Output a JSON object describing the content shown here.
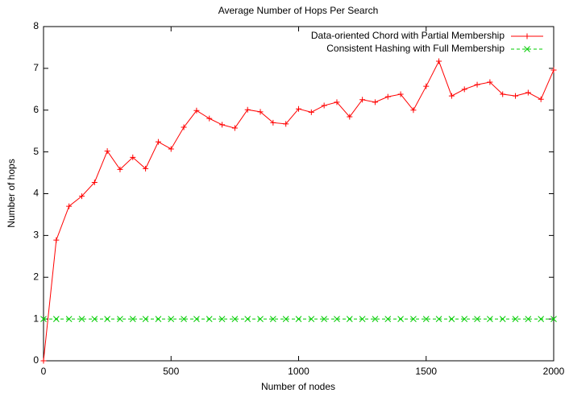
{
  "chart_data": {
    "type": "line",
    "title": "Average Number of Hops Per Search",
    "x_label": "Number of nodes",
    "y_label": "Number of hops",
    "x": [
      0,
      50,
      100,
      150,
      200,
      250,
      300,
      350,
      400,
      450,
      500,
      550,
      600,
      650,
      700,
      750,
      800,
      850,
      900,
      950,
      1000,
      1050,
      1100,
      1150,
      1200,
      1250,
      1300,
      1350,
      1400,
      1450,
      1500,
      1550,
      1600,
      1650,
      1700,
      1750,
      1800,
      1850,
      1900,
      1950,
      2000
    ],
    "series": [
      {
        "name": "Data-oriented Chord with Partial Membership",
        "color": "#ff0000",
        "marker": "plus",
        "values": [
          0,
          2.89,
          3.7,
          3.94,
          4.27,
          5.02,
          4.58,
          4.87,
          4.6,
          5.24,
          5.07,
          5.59,
          5.99,
          5.8,
          5.65,
          5.57,
          6.01,
          5.96,
          5.7,
          5.67,
          6.03,
          5.95,
          6.11,
          6.19,
          5.84,
          6.25,
          6.19,
          6.32,
          6.38,
          6.0,
          6.57,
          7.17,
          6.34,
          6.5,
          6.61,
          6.67,
          6.38,
          6.34,
          6.42,
          6.26,
          6.96
        ]
      },
      {
        "name": "Consistent Hashing with Full Membership",
        "color": "#00cc00",
        "marker": "cross",
        "dashed": true,
        "values": [
          1,
          1,
          1,
          1,
          1,
          1,
          1,
          1,
          1,
          1,
          1,
          1,
          1,
          1,
          1,
          1,
          1,
          1,
          1,
          1,
          1,
          1,
          1,
          1,
          1,
          1,
          1,
          1,
          1,
          1,
          1,
          1,
          1,
          1,
          1,
          1,
          1,
          1,
          1,
          1,
          1
        ]
      }
    ],
    "xlim": [
      0,
      2000
    ],
    "xticks": [
      0,
      500,
      1000,
      1500,
      2000
    ],
    "ylim": [
      0,
      8
    ],
    "yticks": [
      0,
      1,
      2,
      3,
      4,
      5,
      6,
      7,
      8
    ],
    "grid": false,
    "legend": "top-right"
  }
}
